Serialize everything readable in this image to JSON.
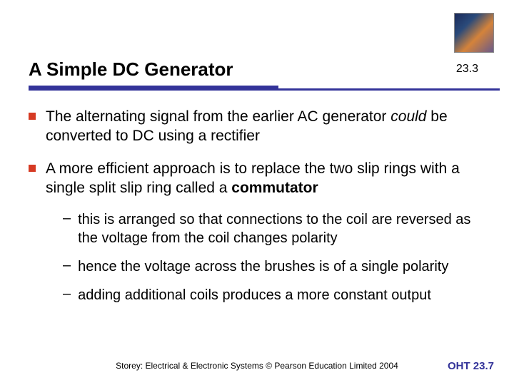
{
  "colors": {
    "rule": "#333399",
    "bullet": "#d63a23",
    "footer_accent": "#333399",
    "text": "#000000",
    "background": "#ffffff"
  },
  "title": "A Simple DC Generator",
  "section_number": "23.3",
  "bullets": [
    {
      "pre": "The alternating signal from the earlier AC generator ",
      "italic": "could",
      "post": " be converted to DC using a rectifier"
    },
    {
      "pre": "A more efficient approach is to replace the two slip rings with a single split slip ring called a ",
      "bold": "commutator",
      "post": ""
    }
  ],
  "sub_bullets": [
    "this is arranged so that connections to the coil are reversed as the voltage from the coil changes polarity",
    "hence the voltage across the brushes is of a single polarity",
    "adding additional coils produces a more constant output"
  ],
  "footer_left": "Storey: Electrical & Electronic Systems © Pearson Education Limited 2004",
  "footer_right": "OHT 23.7"
}
